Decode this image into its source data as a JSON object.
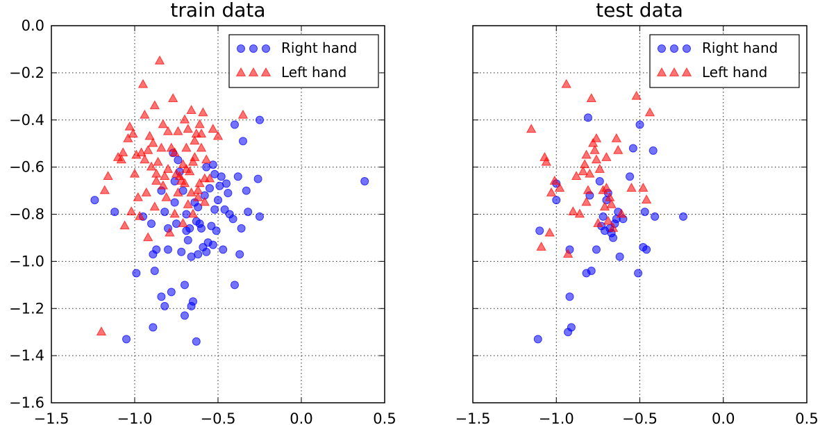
{
  "chart_data": [
    {
      "type": "scatter",
      "title": "train data",
      "xlabel": "",
      "ylabel": "",
      "xlim": [
        -1.5,
        0.5
      ],
      "ylim": [
        -1.6,
        0.0
      ],
      "grid": true,
      "legend_position": "top-right",
      "xticks": [
        "−1.5",
        "−1.0",
        "−0.5",
        "0.0",
        "0.5"
      ],
      "yticks": [
        "0.0",
        "−0.2",
        "−0.4",
        "−0.6",
        "−0.8",
        "−1.0",
        "−1.2",
        "−1.4",
        "−1.6"
      ],
      "series": [
        {
          "name": "Right hand",
          "marker": "circle",
          "color": "#0000ff",
          "points": [
            [
              -1.24,
              -0.74
            ],
            [
              -1.12,
              -0.79
            ],
            [
              -1.05,
              -1.33
            ],
            [
              -0.99,
              -1.05
            ],
            [
              -0.95,
              -0.81
            ],
            [
              -0.9,
              -0.84
            ],
            [
              -0.89,
              -0.97
            ],
            [
              -0.87,
              -0.95
            ],
            [
              -0.89,
              -1.28
            ],
            [
              -0.88,
              -1.04
            ],
            [
              -0.84,
              -1.15
            ],
            [
              -0.82,
              -1.19
            ],
            [
              -0.8,
              -0.95
            ],
            [
              -0.78,
              -1.13
            ],
            [
              -0.77,
              -0.54
            ],
            [
              -0.76,
              -0.66
            ],
            [
              -0.75,
              -0.84
            ],
            [
              -0.74,
              -0.57
            ],
            [
              -0.73,
              -0.62
            ],
            [
              -0.71,
              -0.7
            ],
            [
              -0.7,
              -1.1
            ],
            [
              -0.7,
              -1.23
            ],
            [
              -0.69,
              -0.87
            ],
            [
              -0.68,
              -0.91
            ],
            [
              -0.67,
              -0.86
            ],
            [
              -0.66,
              -1.19
            ],
            [
              -0.65,
              -1.17
            ],
            [
              -0.64,
              -0.75
            ],
            [
              -0.63,
              -1.34
            ],
            [
              -0.63,
              -0.83
            ],
            [
              -0.62,
              -0.77
            ],
            [
              -0.61,
              -0.84
            ],
            [
              -0.6,
              -0.86
            ],
            [
              -0.59,
              -0.94
            ],
            [
              -0.58,
              -0.72
            ],
            [
              -0.57,
              -0.6
            ],
            [
              -0.56,
              -0.92
            ],
            [
              -0.55,
              -0.69
            ],
            [
              -0.54,
              -0.85
            ],
            [
              -0.53,
              -0.59
            ],
            [
              -0.52,
              -0.63
            ],
            [
              -0.51,
              -0.87
            ],
            [
              -0.5,
              -0.74
            ],
            [
              -0.49,
              -0.68
            ],
            [
              -0.48,
              -0.64
            ],
            [
              -0.47,
              -0.95
            ],
            [
              -0.45,
              -0.67
            ],
            [
              -0.43,
              -0.8
            ],
            [
              -0.41,
              -0.82
            ],
            [
              -0.4,
              -1.1
            ],
            [
              -0.4,
              -0.42
            ],
            [
              -0.38,
              -0.64
            ],
            [
              -0.37,
              -0.97
            ],
            [
              -0.36,
              -0.86
            ],
            [
              -0.35,
              -0.49
            ],
            [
              -0.33,
              -0.7
            ],
            [
              -0.32,
              -0.79
            ],
            [
              -0.26,
              -0.65
            ],
            [
              -0.25,
              -0.4
            ],
            [
              -0.25,
              -0.81
            ],
            [
              0.38,
              -0.66
            ],
            [
              -0.84,
              -0.7
            ],
            [
              -0.82,
              -0.79
            ],
            [
              -0.8,
              -0.86
            ],
            [
              -0.76,
              -0.75
            ],
            [
              -0.66,
              -0.98
            ],
            [
              -0.62,
              -0.97
            ],
            [
              -0.57,
              -0.96
            ],
            [
              -0.53,
              -0.93
            ],
            [
              -0.46,
              -0.78
            ],
            [
              -0.44,
              -0.71
            ],
            [
              -0.52,
              -0.78
            ],
            [
              -0.72,
              -0.96
            ],
            [
              -0.69,
              -0.8
            ]
          ]
        },
        {
          "name": "Left hand",
          "marker": "triangle",
          "color": "#ff0000",
          "points": [
            [
              -1.2,
              -1.3
            ],
            [
              -1.18,
              -0.7
            ],
            [
              -1.16,
              -0.64
            ],
            [
              -1.1,
              -0.56
            ],
            [
              -1.08,
              -0.57
            ],
            [
              -1.07,
              -0.54
            ],
            [
              -1.06,
              -0.85
            ],
            [
              -1.04,
              -0.48
            ],
            [
              -1.03,
              -0.43
            ],
            [
              -1.02,
              -0.79
            ],
            [
              -1.01,
              -0.46
            ],
            [
              -1.0,
              -0.63
            ],
            [
              -0.99,
              -0.55
            ],
            [
              -0.98,
              -0.73
            ],
            [
              -0.97,
              -0.81
            ],
            [
              -0.96,
              -0.54
            ],
            [
              -0.95,
              -0.25
            ],
            [
              -0.94,
              -0.38
            ],
            [
              -0.93,
              -0.71
            ],
            [
              -0.92,
              -0.9
            ],
            [
              -0.92,
              -0.53
            ],
            [
              -0.91,
              -0.47
            ],
            [
              -0.9,
              -0.6
            ],
            [
              -0.89,
              -0.5
            ],
            [
              -0.88,
              -0.34
            ],
            [
              -0.87,
              -0.66
            ],
            [
              -0.86,
              -0.58
            ],
            [
              -0.85,
              -0.15
            ],
            [
              -0.84,
              -0.52
            ],
            [
              -0.83,
              -0.42
            ],
            [
              -0.82,
              -0.64
            ],
            [
              -0.81,
              -0.73
            ],
            [
              -0.8,
              -0.61
            ],
            [
              -0.79,
              -0.88
            ],
            [
              -0.78,
              -0.52
            ],
            [
              -0.77,
              -0.31
            ],
            [
              -0.76,
              -0.8
            ],
            [
              -0.75,
              -0.63
            ],
            [
              -0.74,
              -0.45
            ],
            [
              -0.73,
              -0.64
            ],
            [
              -0.72,
              -0.66
            ],
            [
              -0.71,
              -0.59
            ],
            [
              -0.7,
              -0.4
            ],
            [
              -0.69,
              -0.52
            ],
            [
              -0.68,
              -0.76
            ],
            [
              -0.67,
              -0.62
            ],
            [
              -0.66,
              -0.36
            ],
            [
              -0.65,
              -0.8
            ],
            [
              -0.64,
              -0.56
            ],
            [
              -0.63,
              -0.46
            ],
            [
              -0.62,
              -0.7
            ],
            [
              -0.61,
              -0.42
            ],
            [
              -0.6,
              -0.52
            ],
            [
              -0.59,
              -0.37
            ],
            [
              -0.58,
              -0.75
            ],
            [
              -0.57,
              -0.57
            ],
            [
              -0.55,
              -0.65
            ],
            [
              -0.53,
              -0.44
            ],
            [
              -0.5,
              -0.47
            ],
            [
              -0.35,
              -0.38
            ],
            [
              -0.94,
              -0.57
            ],
            [
              -0.83,
              -0.68
            ],
            [
              -0.74,
              -0.71
            ],
            [
              -0.7,
              -0.67
            ],
            [
              -0.68,
              -0.44
            ],
            [
              -0.62,
              -0.73
            ],
            [
              -0.6,
              -0.46
            ],
            [
              -0.58,
              -0.65
            ],
            [
              -0.76,
              -0.54
            ],
            [
              -0.71,
              -0.84
            ],
            [
              -0.66,
              -0.71
            ],
            [
              -0.65,
              -0.58
            ],
            [
              -0.87,
              -0.63
            ],
            [
              -0.8,
              -0.45
            ],
            [
              -0.69,
              -0.61
            ],
            [
              -0.61,
              -0.67
            ],
            [
              -0.64,
              -0.49
            ],
            [
              -0.88,
              -0.77
            ]
          ]
        }
      ]
    },
    {
      "type": "scatter",
      "title": "test data",
      "xlabel": "",
      "ylabel": "",
      "xlim": [
        -1.5,
        0.5
      ],
      "ylim": [
        -1.6,
        0.0
      ],
      "grid": true,
      "legend_position": "top-right",
      "xticks": [
        "−1.5",
        "−1.0",
        "−0.5",
        "0.0",
        "0.5"
      ],
      "yticks": [],
      "series": [
        {
          "name": "Right hand",
          "marker": "circle",
          "color": "#0000ff",
          "points": [
            [
              -1.11,
              -1.33
            ],
            [
              -1.1,
              -0.87
            ],
            [
              -1.0,
              -0.67
            ],
            [
              -1.0,
              -0.74
            ],
            [
              -0.93,
              -1.3
            ],
            [
              -0.92,
              -1.15
            ],
            [
              -0.92,
              -0.95
            ],
            [
              -0.91,
              -1.28
            ],
            [
              -0.82,
              -1.05
            ],
            [
              -0.81,
              -0.39
            ],
            [
              -0.8,
              -0.72
            ],
            [
              -0.79,
              -1.04
            ],
            [
              -0.76,
              -0.95
            ],
            [
              -0.74,
              -0.66
            ],
            [
              -0.73,
              -0.85
            ],
            [
              -0.72,
              -0.81
            ],
            [
              -0.71,
              -0.87
            ],
            [
              -0.7,
              -0.74
            ],
            [
              -0.69,
              -0.71
            ],
            [
              -0.68,
              -0.86
            ],
            [
              -0.67,
              -0.88
            ],
            [
              -0.66,
              -0.9
            ],
            [
              -0.65,
              -0.84
            ],
            [
              -0.64,
              -0.82
            ],
            [
              -0.63,
              -0.79
            ],
            [
              -0.62,
              -0.98
            ],
            [
              -0.6,
              -0.82
            ],
            [
              -0.56,
              -0.64
            ],
            [
              -0.54,
              -0.52
            ],
            [
              -0.51,
              -1.05
            ],
            [
              -0.5,
              -0.42
            ],
            [
              -0.48,
              -0.94
            ],
            [
              -0.47,
              -0.79
            ],
            [
              -0.46,
              -0.95
            ],
            [
              -0.42,
              -0.53
            ],
            [
              -0.41,
              -0.81
            ],
            [
              -0.24,
              -0.81
            ]
          ]
        },
        {
          "name": "Left hand",
          "marker": "triangle",
          "color": "#ff0000",
          "points": [
            [
              -1.15,
              -0.44
            ],
            [
              -1.09,
              -0.94
            ],
            [
              -1.07,
              -0.56
            ],
            [
              -1.06,
              -0.58
            ],
            [
              -1.04,
              -0.88
            ],
            [
              -1.03,
              -0.71
            ],
            [
              -1.01,
              -0.66
            ],
            [
              -0.98,
              -0.69
            ],
            [
              -0.93,
              -0.97
            ],
            [
              -0.9,
              -0.79
            ],
            [
              -0.88,
              -0.64
            ],
            [
              -0.86,
              -0.8
            ],
            [
              -0.84,
              -0.62
            ],
            [
              -0.83,
              -0.59
            ],
            [
              -0.82,
              -0.55
            ],
            [
              -0.82,
              -0.75
            ],
            [
              -0.81,
              -0.7
            ],
            [
              -0.8,
              -0.63
            ],
            [
              -0.79,
              -0.31
            ],
            [
              -0.78,
              -0.5
            ],
            [
              -0.77,
              -0.53
            ],
            [
              -0.76,
              -0.48
            ],
            [
              -0.76,
              -0.57
            ],
            [
              -0.74,
              -0.61
            ],
            [
              -0.72,
              -0.7
            ],
            [
              -0.71,
              -0.77
            ],
            [
              -0.7,
              -0.69
            ],
            [
              -0.69,
              -0.83
            ],
            [
              -0.68,
              -0.73
            ],
            [
              -0.67,
              -0.76
            ],
            [
              -0.66,
              -0.86
            ],
            [
              -0.64,
              -0.48
            ],
            [
              -0.63,
              -0.53
            ],
            [
              -0.61,
              -0.8
            ],
            [
              -0.55,
              -0.69
            ],
            [
              -0.52,
              -0.3
            ],
            [
              -0.48,
              -0.69
            ],
            [
              -0.46,
              -0.74
            ],
            [
              -0.44,
              -0.37
            ],
            [
              -0.94,
              -0.25
            ],
            [
              -0.7,
              -0.56
            ],
            [
              -0.75,
              -0.84
            ]
          ]
        }
      ]
    }
  ]
}
